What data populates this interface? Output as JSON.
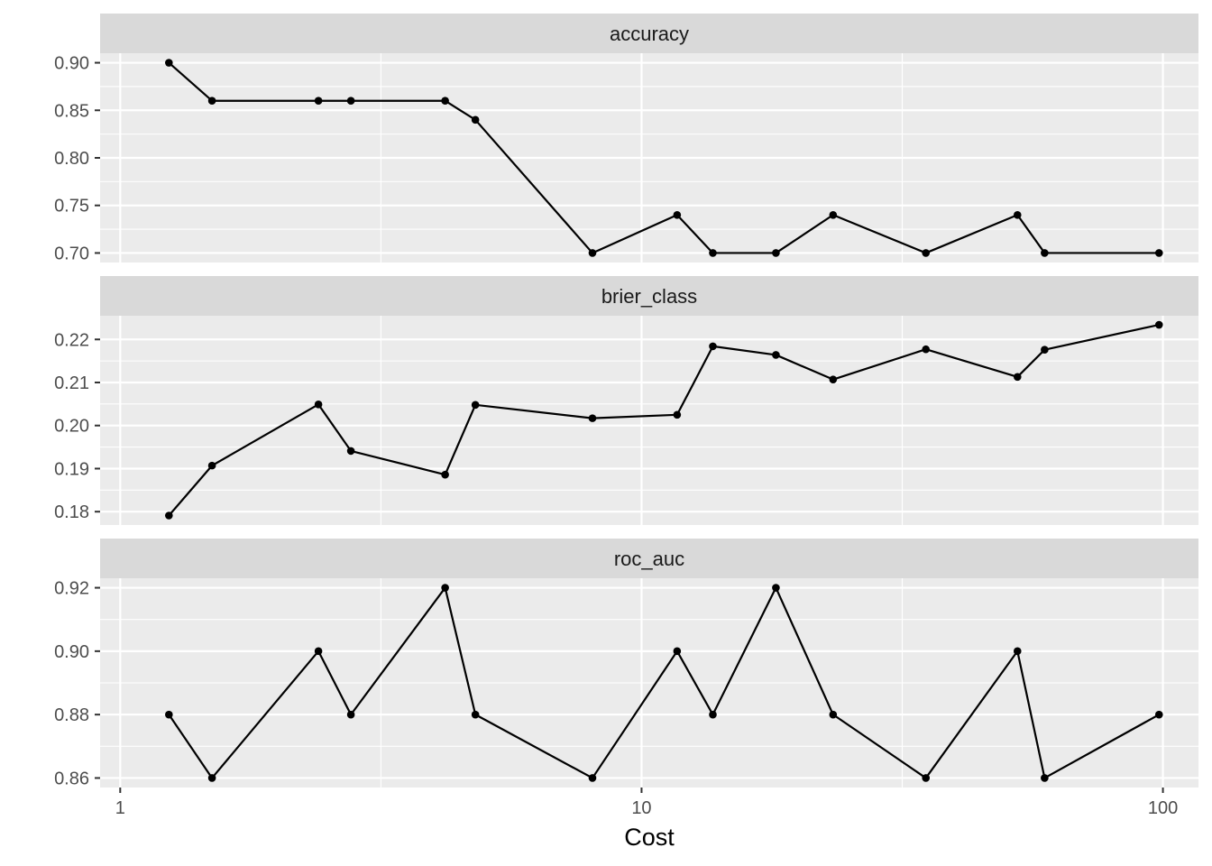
{
  "chart_data": {
    "type": "line",
    "layout": "facet-rows",
    "xlabel": "Cost",
    "x_scale": "log10",
    "x_range": [
      0.915,
      117
    ],
    "x_ticks": [
      1,
      10,
      100
    ],
    "x_tick_labels": [
      "1",
      "10",
      "100"
    ],
    "grid": true,
    "x": [
      1.24,
      1.5,
      2.4,
      2.77,
      4.2,
      4.8,
      8.05,
      11.7,
      13.7,
      18.1,
      23.3,
      35.1,
      52.6,
      59.3,
      98.3
    ],
    "panels": [
      {
        "name": "accuracy",
        "y": [
          0.9,
          0.86,
          0.86,
          0.86,
          0.86,
          0.84,
          0.7,
          0.74,
          0.7,
          0.7,
          0.74,
          0.7,
          0.74,
          0.7,
          0.7
        ],
        "y_range": [
          0.69,
          0.91
        ],
        "y_ticks": [
          0.7,
          0.75,
          0.8,
          0.85,
          0.9
        ],
        "y_tick_labels": [
          "0.70",
          "0.75",
          "0.80",
          "0.85",
          "0.90"
        ]
      },
      {
        "name": "brier_class",
        "y": [
          0.1791,
          0.1907,
          0.2049,
          0.1941,
          0.1886,
          0.2048,
          0.2017,
          0.2025,
          0.2184,
          0.2164,
          0.2107,
          0.2177,
          0.2113,
          0.2176,
          0.2234
        ],
        "y_range": [
          0.1769,
          0.2255
        ],
        "y_ticks": [
          0.18,
          0.19,
          0.2,
          0.21,
          0.22
        ],
        "y_tick_labels": [
          "0.18",
          "0.19",
          "0.20",
          "0.21",
          "0.22"
        ]
      },
      {
        "name": "roc_auc",
        "y": [
          0.88,
          0.86,
          0.9,
          0.88,
          0.92,
          0.88,
          0.86,
          0.9,
          0.88,
          0.92,
          0.88,
          0.86,
          0.9,
          0.86,
          0.88
        ],
        "y_range": [
          0.857,
          0.923
        ],
        "y_ticks": [
          0.86,
          0.88,
          0.9,
          0.92
        ],
        "y_tick_labels": [
          "0.86",
          "0.88",
          "0.90",
          "0.92"
        ]
      }
    ],
    "colors": {
      "panel_bg": "#ebebeb",
      "strip_bg": "#d9d9d9",
      "grid": "#ffffff",
      "line": "#000000",
      "tick": "#333333"
    }
  }
}
